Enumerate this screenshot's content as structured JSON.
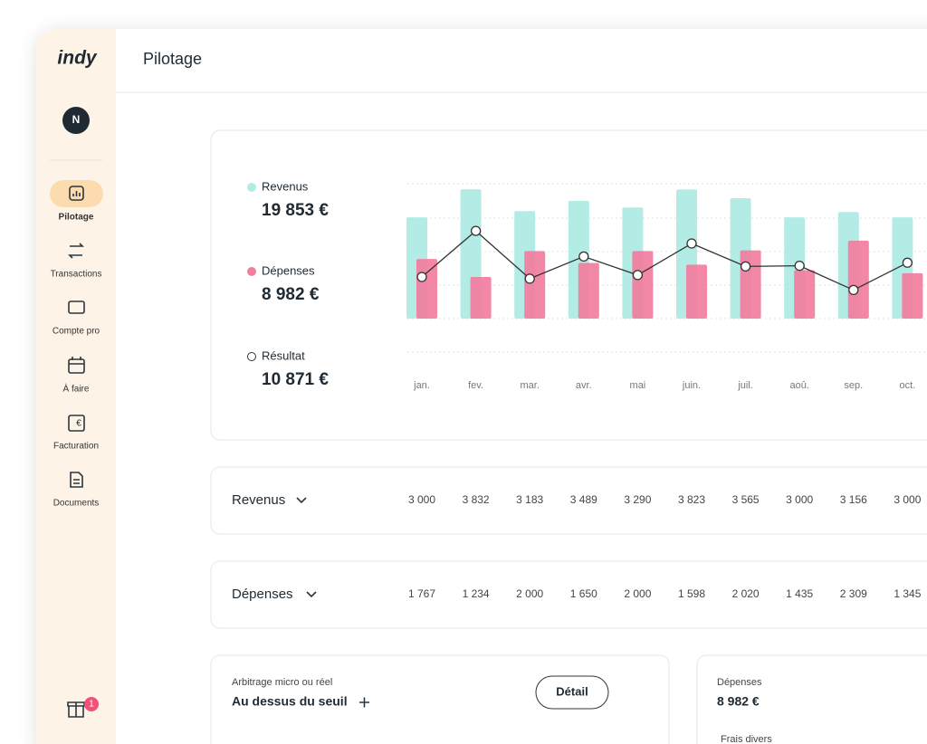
{
  "sidebar": {
    "logo": "indy",
    "avatar": "N",
    "nav": [
      "Pilotage",
      "Transactions",
      "Compte pro",
      "À faire",
      "Facturation",
      "Documents"
    ],
    "badge": "1"
  },
  "header": {
    "title": "Pilotage"
  },
  "totals": [
    "19 853 €",
    "8 982 €",
    "10 871 €"
  ],
  "chart_data": {
    "type": "bar",
    "categories": [
      "jan.",
      "fev.",
      "mar.",
      "avr.",
      "mai",
      "juin.",
      "juil.",
      "aoû.",
      "sep.",
      "oct."
    ],
    "series": [
      {
        "name": "Revenus",
        "color": "#b3ebe5",
        "values": [
          3000,
          3832,
          3183,
          3489,
          3290,
          3823,
          3565,
          3000,
          3156,
          3000
        ],
        "value_labels": [
          "3 000",
          "3 832",
          "3 183",
          "3 489",
          "3 290",
          "3 823",
          "3 565",
          "3 000",
          "3 156",
          "3 000"
        ]
      },
      {
        "name": "Dépenses",
        "color": "#f27d9e",
        "values": [
          1767,
          1234,
          2000,
          1650,
          2000,
          1598,
          2020,
          1435,
          2309,
          1345
        ],
        "value_labels": [
          "1 767",
          "1 234",
          "2 000",
          "1 650",
          "2 000",
          "1 598",
          "2 020",
          "1 435",
          "2 309",
          "1 345"
        ]
      },
      {
        "name": "Résultat",
        "type": "line",
        "color": "#333333",
        "values": [
          1233,
          2598,
          1183,
          1839,
          1290,
          2225,
          1545,
          1565,
          847,
          1655
        ]
      }
    ]
  },
  "table": {
    "rows": [
      "Revenus",
      "Dépenses"
    ]
  },
  "cards": [
    {
      "caption": "Arbitrage micro ou réel",
      "title": "Au dessus du seuil",
      "button": "Détail"
    },
    {
      "caption": "Dépenses",
      "title": "8 982 €",
      "sub": "Frais divers"
    }
  ]
}
